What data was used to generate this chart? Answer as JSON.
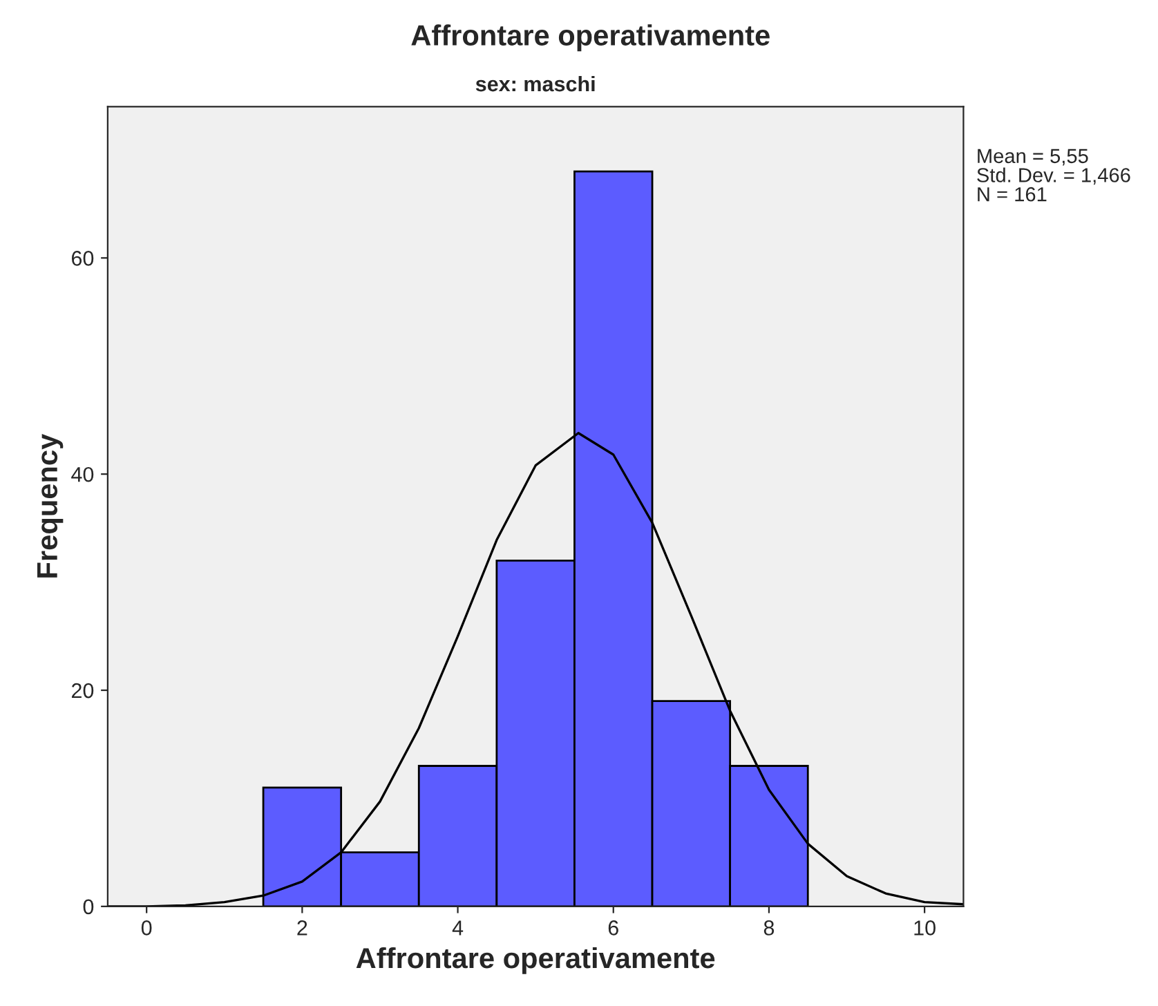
{
  "chart_data": {
    "type": "histogram",
    "title": "Affrontare operativamente",
    "subtitle": "sex: maschi",
    "xlabel": "Affrontare operativamente",
    "ylabel": "Frequency",
    "xlim": [
      -0.5,
      10.5
    ],
    "xticks": [
      0,
      2,
      4,
      6,
      8,
      10
    ],
    "ylim": [
      0,
      74
    ],
    "yticks": [
      0,
      20,
      40,
      60
    ],
    "grid": false,
    "legend": false,
    "series": [
      {
        "color": "#5c5cff",
        "bins": [
          1.5,
          2.5,
          3.5,
          4.5,
          5.5,
          6.5,
          7.5,
          8.5
        ],
        "values": [
          11,
          5,
          13,
          32,
          68,
          19,
          13
        ]
      },
      {
        "type": "line",
        "color": "#000000",
        "x": [
          -0.5,
          0,
          0.5,
          1,
          1.5,
          2,
          2.5,
          3,
          3.5,
          4,
          4.5,
          5,
          5.55,
          6,
          6.5,
          7,
          7.5,
          8,
          8.5,
          9,
          9.5,
          10,
          10.5
        ],
        "values": [
          0.0,
          0.0,
          0.1,
          0.4,
          1.0,
          2.3,
          5.0,
          9.7,
          16.5,
          25.0,
          33.9,
          40.8,
          43.8,
          41.8,
          35.5,
          26.9,
          18.1,
          10.8,
          5.8,
          2.8,
          1.2,
          0.4,
          0.2
        ]
      }
    ],
    "annotations": [
      "Mean = 5,55",
      "Std. Dev. = 1,466",
      "N = 161"
    ]
  }
}
